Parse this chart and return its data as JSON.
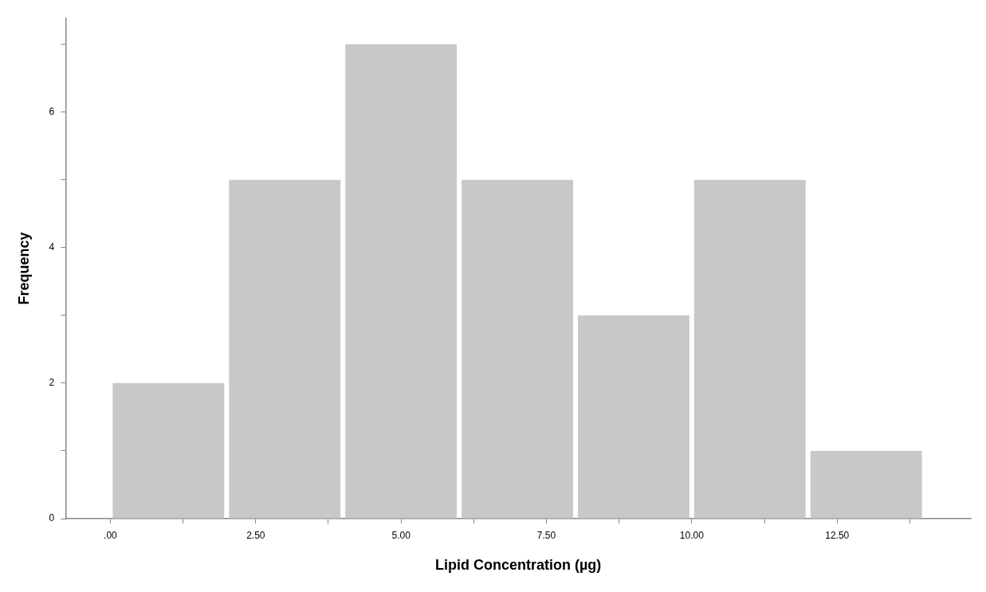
{
  "chart_data": {
    "type": "histogram",
    "xlabel": "Lipid Concentration (µg)",
    "ylabel": "Frequency",
    "bins": [
      0,
      2,
      4,
      6,
      8,
      10,
      12,
      14
    ],
    "values": [
      2,
      5,
      7,
      5,
      3,
      5,
      1
    ],
    "color": "#c8c8c8",
    "xlim": [
      -0.77,
      14.8
    ],
    "ylim": [
      0,
      7.38
    ],
    "xticks": [
      {
        "value": 0,
        "label": ".00"
      },
      {
        "value": 1.25,
        "label": null
      },
      {
        "value": 2.5,
        "label": "2.50"
      },
      {
        "value": 3.75,
        "label": null
      },
      {
        "value": 5,
        "label": "5.00"
      },
      {
        "value": 6.25,
        "label": null
      },
      {
        "value": 7.5,
        "label": "7.50"
      },
      {
        "value": 8.75,
        "label": null
      },
      {
        "value": 10,
        "label": "10.00"
      },
      {
        "value": 11.25,
        "label": null
      },
      {
        "value": 12.5,
        "label": "12.50"
      },
      {
        "value": 13.75,
        "label": null
      }
    ],
    "yticks": [
      0,
      {
        "value": 1,
        "label": null
      },
      2,
      {
        "value": 3,
        "label": null
      },
      4,
      {
        "value": 5,
        "label": null
      },
      6,
      {
        "value": 7,
        "label": null
      }
    ],
    "grid": false,
    "legend": false
  }
}
